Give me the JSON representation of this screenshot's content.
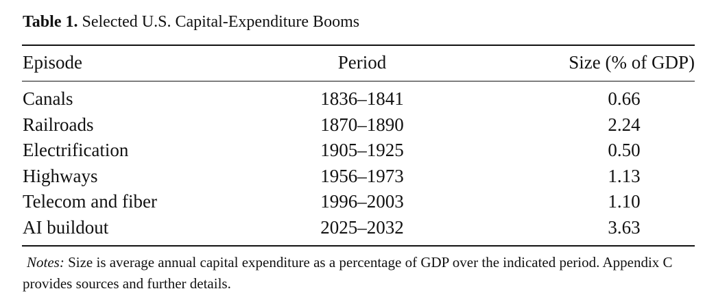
{
  "caption": {
    "label": "Table 1.",
    "title": "Selected U.S. Capital-Expenditure Booms"
  },
  "table": {
    "columns": [
      "Episode",
      "Period",
      "Size (% of GDP)"
    ],
    "rows": [
      {
        "episode": "Canals",
        "period": "1836–1841",
        "size": "0.66"
      },
      {
        "episode": "Railroads",
        "period": "1870–1890",
        "size": "2.24"
      },
      {
        "episode": "Electrification",
        "period": "1905–1925",
        "size": "0.50"
      },
      {
        "episode": "Highways",
        "period": "1956–1973",
        "size": "1.13"
      },
      {
        "episode": "Telecom and fiber",
        "period": "1996–2003",
        "size": "1.10"
      },
      {
        "episode": "AI buildout",
        "period": "2025–2032",
        "size": "3.63"
      }
    ]
  },
  "notes": {
    "lead": "Notes:",
    "text": "Size is average annual capital expenditure as a percentage of GDP over the indicated period. Appendix C provides sources and further details."
  }
}
